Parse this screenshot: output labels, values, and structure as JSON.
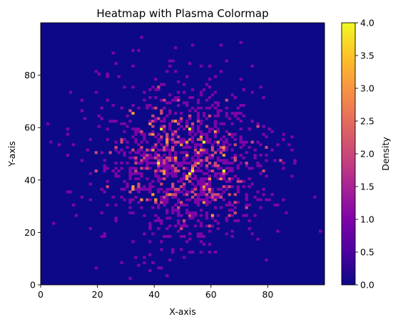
{
  "chart_data": {
    "type": "heatmap",
    "title": "Heatmap with Plasma Colormap",
    "xlabel": "X-axis",
    "ylabel": "Y-axis",
    "grid": false,
    "xlim": [
      0,
      100
    ],
    "ylim": [
      0,
      100
    ],
    "resolution": [
      100,
      100
    ],
    "colormap": "plasma",
    "xticks": [
      "0",
      "20",
      "40",
      "60",
      "80"
    ],
    "yticks": [
      "0",
      "20",
      "40",
      "60",
      "80"
    ],
    "colorbar": {
      "label": "Density",
      "range": [
        0,
        4
      ],
      "ticks": [
        "0.0",
        "0.5",
        "1.0",
        "1.5",
        "2.0",
        "2.5",
        "3.0",
        "3.5",
        "4.0"
      ]
    },
    "value_distribution": {
      "center": [
        50,
        47
      ],
      "spread": 15,
      "max": 4
    },
    "bright_cells": [
      {
        "x": 64,
        "y": 43,
        "value": 4
      },
      {
        "x": 52,
        "y": 59,
        "value": 4
      },
      {
        "x": 35,
        "y": 32,
        "value": 3
      },
      {
        "x": 44,
        "y": 55,
        "value": 3
      },
      {
        "x": 39,
        "y": 51,
        "value": 3
      },
      {
        "x": 45,
        "y": 34,
        "value": 3
      },
      {
        "x": 55,
        "y": 50,
        "value": 3
      },
      {
        "x": 32,
        "y": 65,
        "value": 3
      },
      {
        "x": 47,
        "y": 62,
        "value": 3
      },
      {
        "x": 38,
        "y": 61,
        "value": 3
      }
    ]
  }
}
